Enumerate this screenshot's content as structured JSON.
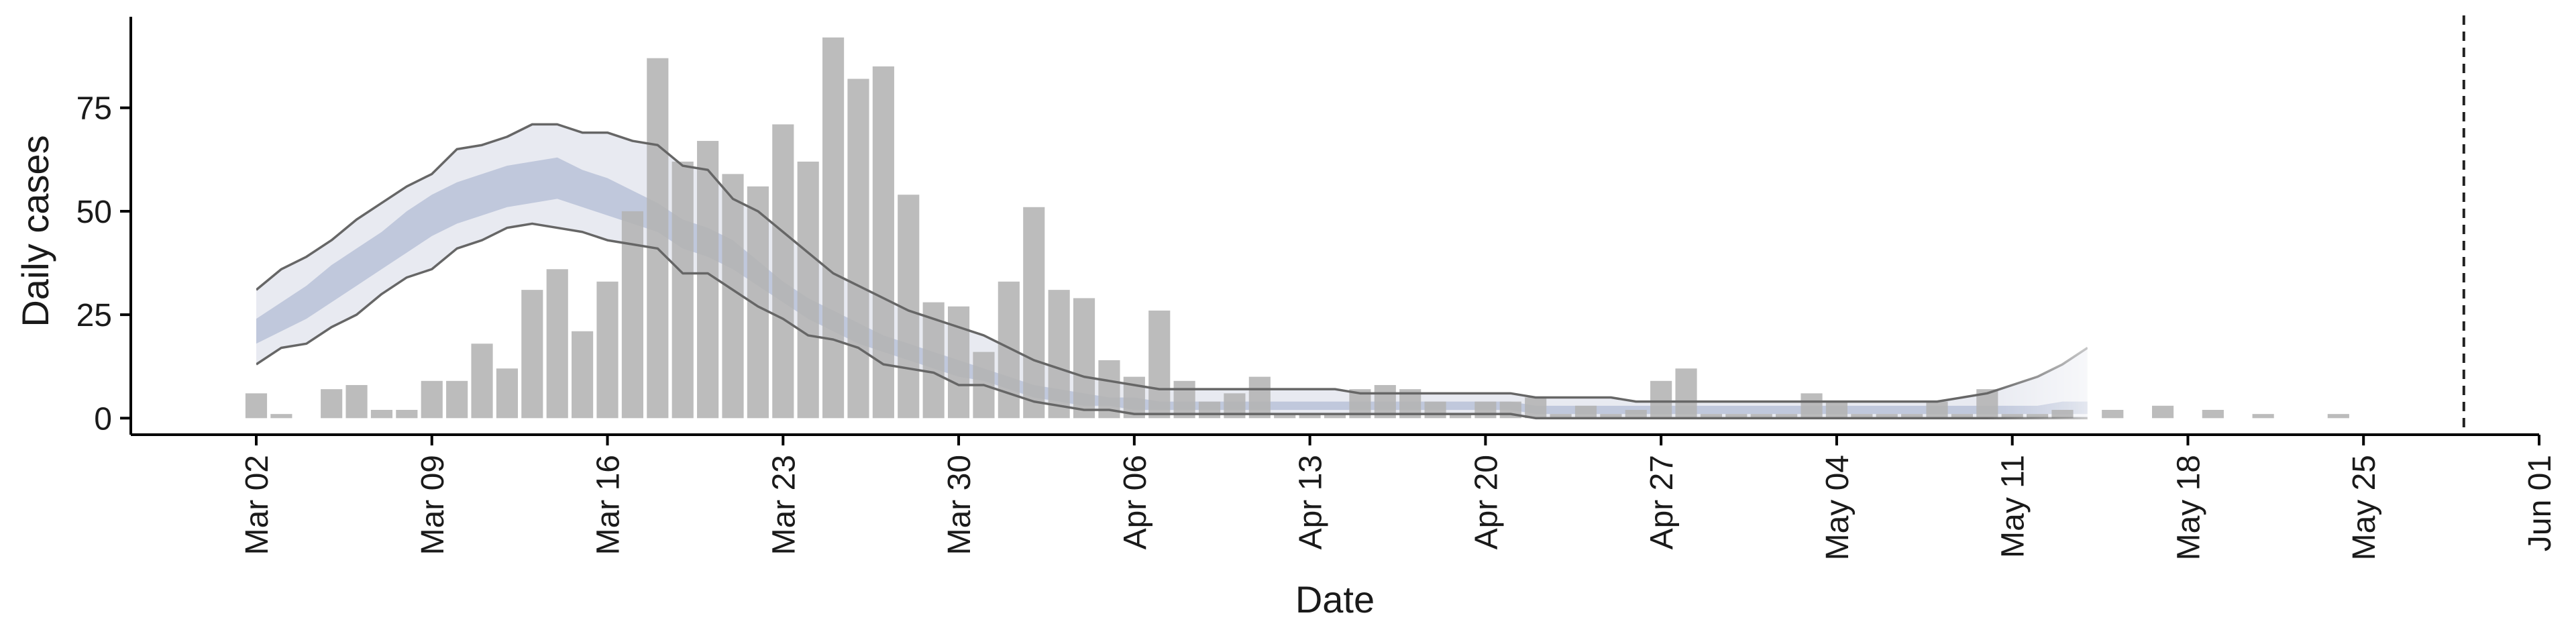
{
  "chart_data": {
    "type": "bar",
    "xlabel": "Date",
    "ylabel": "Daily cases",
    "ylim": [
      -4,
      97
    ],
    "xlim": [
      "2020-02-26",
      "2020-06-01"
    ],
    "grid": false,
    "legend": "none",
    "x_ticks": [
      {
        "date": "2020-03-02",
        "label": "Mar 02"
      },
      {
        "date": "2020-03-09",
        "label": "Mar 09"
      },
      {
        "date": "2020-03-16",
        "label": "Mar 16"
      },
      {
        "date": "2020-03-23",
        "label": "Mar 23"
      },
      {
        "date": "2020-03-30",
        "label": "Mar 30"
      },
      {
        "date": "2020-04-06",
        "label": "Apr 06"
      },
      {
        "date": "2020-04-13",
        "label": "Apr 13"
      },
      {
        "date": "2020-04-20",
        "label": "Apr 20"
      },
      {
        "date": "2020-04-27",
        "label": "Apr 27"
      },
      {
        "date": "2020-05-04",
        "label": "May 04"
      },
      {
        "date": "2020-05-11",
        "label": "May 11"
      },
      {
        "date": "2020-05-18",
        "label": "May 18"
      },
      {
        "date": "2020-05-25",
        "label": "May 25"
      },
      {
        "date": "2020-06-01",
        "label": "Jun 01"
      }
    ],
    "y_ticks": [
      0,
      25,
      50,
      75
    ],
    "observed_cases": {
      "start_date": "2020-03-02",
      "values": [
        6,
        1,
        0,
        7,
        8,
        2,
        2,
        9,
        9,
        18,
        12,
        31,
        36,
        21,
        33,
        50,
        87,
        62,
        67,
        59,
        56,
        71,
        62,
        92,
        82,
        85,
        54,
        28,
        27,
        16,
        33,
        51,
        31,
        29,
        14,
        10,
        26,
        9,
        4,
        6,
        10,
        1,
        1,
        1,
        7,
        8,
        7,
        4,
        1,
        4,
        4,
        5,
        1,
        3,
        1,
        2,
        9,
        12,
        1,
        1,
        1,
        1,
        6,
        4,
        1,
        1,
        1,
        4,
        1,
        7,
        1,
        1,
        2,
        0,
        2,
        0,
        3,
        0,
        2,
        0,
        1,
        0,
        0,
        1
      ]
    },
    "model_fit": {
      "start_date": "2020-03-02",
      "outer_upper": [
        31,
        36,
        39,
        43,
        48,
        52,
        56,
        59,
        65,
        66,
        68,
        71,
        71,
        69,
        69,
        67,
        66,
        61,
        60,
        53,
        50,
        45,
        40,
        35,
        32,
        29,
        26,
        24,
        22,
        20,
        17,
        14,
        12,
        10,
        9,
        8,
        7,
        7,
        7,
        7,
        7,
        7,
        7,
        7,
        6,
        6,
        6,
        6,
        6,
        6,
        6,
        5,
        5,
        5,
        5,
        4,
        4,
        4,
        4,
        4,
        4,
        4,
        4,
        4,
        4,
        4,
        4,
        4,
        5,
        6,
        8,
        10,
        13,
        17
      ],
      "inner_upper": [
        24,
        28,
        32,
        37,
        41,
        45,
        50,
        54,
        57,
        59,
        61,
        62,
        63,
        60,
        58,
        55,
        52,
        48,
        46,
        43,
        38,
        33,
        29,
        26,
        23,
        20,
        18,
        16,
        14,
        12,
        10,
        8,
        7,
        6,
        5,
        5,
        4,
        4,
        4,
        4,
        4,
        4,
        4,
        4,
        4,
        4,
        4,
        4,
        4,
        4,
        4,
        3,
        3,
        3,
        3,
        3,
        3,
        3,
        3,
        3,
        3,
        3,
        3,
        3,
        3,
        3,
        3,
        3,
        3,
        3,
        3,
        3,
        4,
        4
      ],
      "inner_lower": [
        18,
        21,
        24,
        28,
        32,
        36,
        40,
        44,
        47,
        49,
        51,
        52,
        53,
        51,
        49,
        47,
        45,
        41,
        39,
        36,
        32,
        28,
        24,
        21,
        18,
        16,
        14,
        12,
        10,
        9,
        7,
        5,
        4,
        3,
        3,
        2,
        2,
        2,
        2,
        2,
        2,
        2,
        2,
        2,
        2,
        2,
        2,
        2,
        2,
        2,
        2,
        1,
        1,
        1,
        1,
        1,
        1,
        1,
        1,
        1,
        1,
        1,
        1,
        1,
        1,
        1,
        1,
        1,
        1,
        1,
        1,
        1,
        1,
        1
      ],
      "outer_lower": [
        13,
        17,
        18,
        22,
        25,
        30,
        34,
        36,
        41,
        43,
        46,
        47,
        46,
        45,
        43,
        42,
        41,
        35,
        35,
        31,
        27,
        24,
        20,
        19,
        17,
        13,
        12,
        11,
        8,
        8,
        6,
        4,
        3,
        2,
        2,
        1,
        1,
        1,
        1,
        1,
        1,
        1,
        1,
        1,
        1,
        1,
        1,
        1,
        1,
        1,
        1,
        0,
        0,
        0,
        0,
        0,
        0,
        0,
        0,
        0,
        0,
        0,
        0,
        0,
        0,
        0,
        0,
        0,
        0,
        0,
        0,
        0,
        0,
        0
      ]
    },
    "vertical_marker_date": "2020-05-29",
    "colors": {
      "bar": "#b3b3b3",
      "outer_band": "#e8eaf1",
      "inner_band": "#c0c8dc",
      "bound_line": "#666666",
      "axis": "#000000"
    }
  }
}
